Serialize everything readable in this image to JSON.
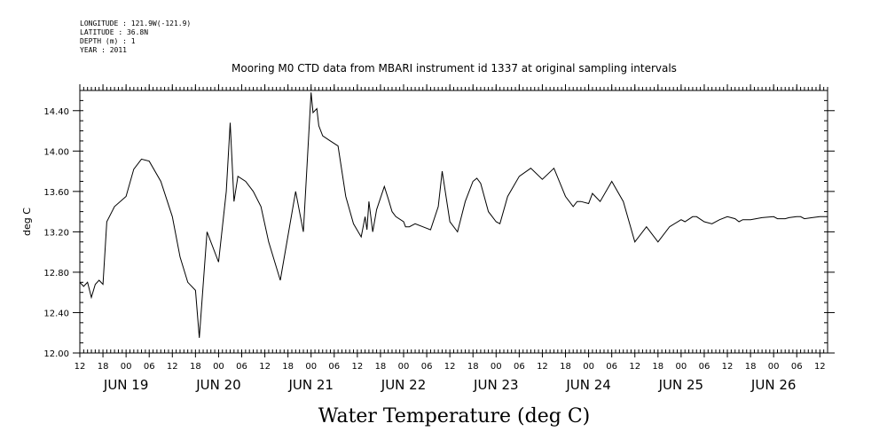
{
  "meta": {
    "longitude": "LONGITUDE : 121.9W(-121.9)",
    "latitude": "LATITUDE : 36.8N",
    "depth": "DEPTH (m) : 1",
    "year": "YEAR : 2011"
  },
  "chart_data": {
    "type": "line",
    "title": "Mooring M0 CTD data from MBARI instrument id 1337 at original sampling intervals",
    "xlabel": "Water Temperature (deg C)",
    "ylabel": "deg C",
    "ylim": [
      12.0,
      14.6
    ],
    "yticks": [
      "12.00",
      "12.40",
      "12.80",
      "13.20",
      "13.60",
      "14.00",
      "14.40"
    ],
    "xlim": [
      "2011-06-18T12:00",
      "2011-06-26T14:00"
    ],
    "xtick_labels": [
      "12",
      "18",
      "00",
      "06",
      "12",
      "18",
      "00",
      "06",
      "12",
      "18",
      "00",
      "06",
      "12",
      "18",
      "00",
      "06",
      "12",
      "18",
      "00",
      "06",
      "12",
      "18",
      "00",
      "06",
      "12",
      "18",
      "00",
      "06",
      "12",
      "18",
      "00",
      "06",
      "12"
    ],
    "day_labels": [
      "JUN 19",
      "JUN 20",
      "JUN 21",
      "JUN 22",
      "JUN 23",
      "JUN 24",
      "JUN 25",
      "JUN 26"
    ],
    "grid": false,
    "series": [
      {
        "color": "#000000",
        "x": [
          "2011-06-18T12:00",
          "2011-06-18T13:00",
          "2011-06-18T14:00",
          "2011-06-18T15:00",
          "2011-06-18T16:00",
          "2011-06-18T17:00",
          "2011-06-18T18:00",
          "2011-06-18T19:00",
          "2011-06-18T21:00",
          "2011-06-19T00:00",
          "2011-06-19T02:00",
          "2011-06-19T04:00",
          "2011-06-19T06:00",
          "2011-06-19T09:00",
          "2011-06-19T12:00",
          "2011-06-19T14:00",
          "2011-06-19T16:00",
          "2011-06-19T18:00",
          "2011-06-19T19:00",
          "2011-06-19T21:00",
          "2011-06-20T00:00",
          "2011-06-20T02:00",
          "2011-06-20T03:00",
          "2011-06-20T04:00",
          "2011-06-20T05:00",
          "2011-06-20T07:00",
          "2011-06-20T09:00",
          "2011-06-20T11:00",
          "2011-06-20T13:00",
          "2011-06-20T16:00",
          "2011-06-20T20:00",
          "2011-06-20T22:00",
          "2011-06-21T00:00",
          "2011-06-21T00:30",
          "2011-06-21T01:30",
          "2011-06-21T02:00",
          "2011-06-21T03:00",
          "2011-06-21T05:00",
          "2011-06-21T07:00",
          "2011-06-21T09:00",
          "2011-06-21T11:00",
          "2011-06-21T13:00",
          "2011-06-21T14:00",
          "2011-06-21T14:30",
          "2011-06-21T15:00",
          "2011-06-21T16:00",
          "2011-06-21T17:00",
          "2011-06-21T19:00",
          "2011-06-21T20:00",
          "2011-06-21T21:00",
          "2011-06-21T22:00",
          "2011-06-22T00:00",
          "2011-06-22T00:30",
          "2011-06-22T01:30",
          "2011-06-22T03:00",
          "2011-06-22T05:00",
          "2011-06-22T07:00",
          "2011-06-22T09:00",
          "2011-06-22T10:00",
          "2011-06-22T12:00",
          "2011-06-22T14:00",
          "2011-06-22T16:00",
          "2011-06-22T18:00",
          "2011-06-22T19:00",
          "2011-06-22T20:00",
          "2011-06-22T22:00",
          "2011-06-23T00:00",
          "2011-06-23T01:00",
          "2011-06-23T03:00",
          "2011-06-23T06:00",
          "2011-06-23T09:00",
          "2011-06-23T12:00",
          "2011-06-23T15:00",
          "2011-06-23T18:00",
          "2011-06-23T20:00",
          "2011-06-23T21:00",
          "2011-06-23T22:00",
          "2011-06-24T00:00",
          "2011-06-24T01:00",
          "2011-06-24T03:00",
          "2011-06-24T06:00",
          "2011-06-24T09:00",
          "2011-06-24T12:00",
          "2011-06-24T15:00",
          "2011-06-24T18:00",
          "2011-06-24T21:00",
          "2011-06-25T00:00",
          "2011-06-25T01:00",
          "2011-06-25T03:00",
          "2011-06-25T04:00",
          "2011-06-25T06:00",
          "2011-06-25T08:00",
          "2011-06-25T10:00",
          "2011-06-25T12:00",
          "2011-06-25T14:00",
          "2011-06-25T15:00",
          "2011-06-25T16:00",
          "2011-06-25T18:00",
          "2011-06-25T21:00",
          "2011-06-26T00:00",
          "2011-06-26T01:00",
          "2011-06-26T03:00",
          "2011-06-26T04:00",
          "2011-06-26T06:00",
          "2011-06-26T07:00",
          "2011-06-26T08:00",
          "2011-06-26T10:00",
          "2011-06-26T12:00",
          "2011-06-26T14:00"
        ],
        "y": [
          12.7,
          12.66,
          12.7,
          12.55,
          12.68,
          12.72,
          12.68,
          13.3,
          13.45,
          13.55,
          13.82,
          13.92,
          13.9,
          13.7,
          13.35,
          12.95,
          12.7,
          12.62,
          12.15,
          13.2,
          12.9,
          13.6,
          14.28,
          13.5,
          13.75,
          13.7,
          13.6,
          13.45,
          13.1,
          12.72,
          13.6,
          13.2,
          14.58,
          14.38,
          14.42,
          14.25,
          14.15,
          14.1,
          14.05,
          13.55,
          13.28,
          13.15,
          13.35,
          13.22,
          13.5,
          13.2,
          13.42,
          13.65,
          13.53,
          13.4,
          13.35,
          13.3,
          13.25,
          13.25,
          13.28,
          13.25,
          13.22,
          13.45,
          13.8,
          13.3,
          13.2,
          13.5,
          13.7,
          13.73,
          13.68,
          13.4,
          13.3,
          13.28,
          13.55,
          13.75,
          13.83,
          13.72,
          13.83,
          13.55,
          13.45,
          13.5,
          13.5,
          13.48,
          13.58,
          13.5,
          13.7,
          13.5,
          13.1,
          13.25,
          13.1,
          13.25,
          13.32,
          13.3,
          13.35,
          13.35,
          13.3,
          13.28,
          13.32,
          13.35,
          13.33,
          13.3,
          13.32,
          13.32,
          13.34,
          13.35,
          13.33,
          13.33,
          13.34,
          13.35,
          13.35,
          13.33,
          13.34,
          13.35,
          13.35
        ]
      }
    ]
  }
}
